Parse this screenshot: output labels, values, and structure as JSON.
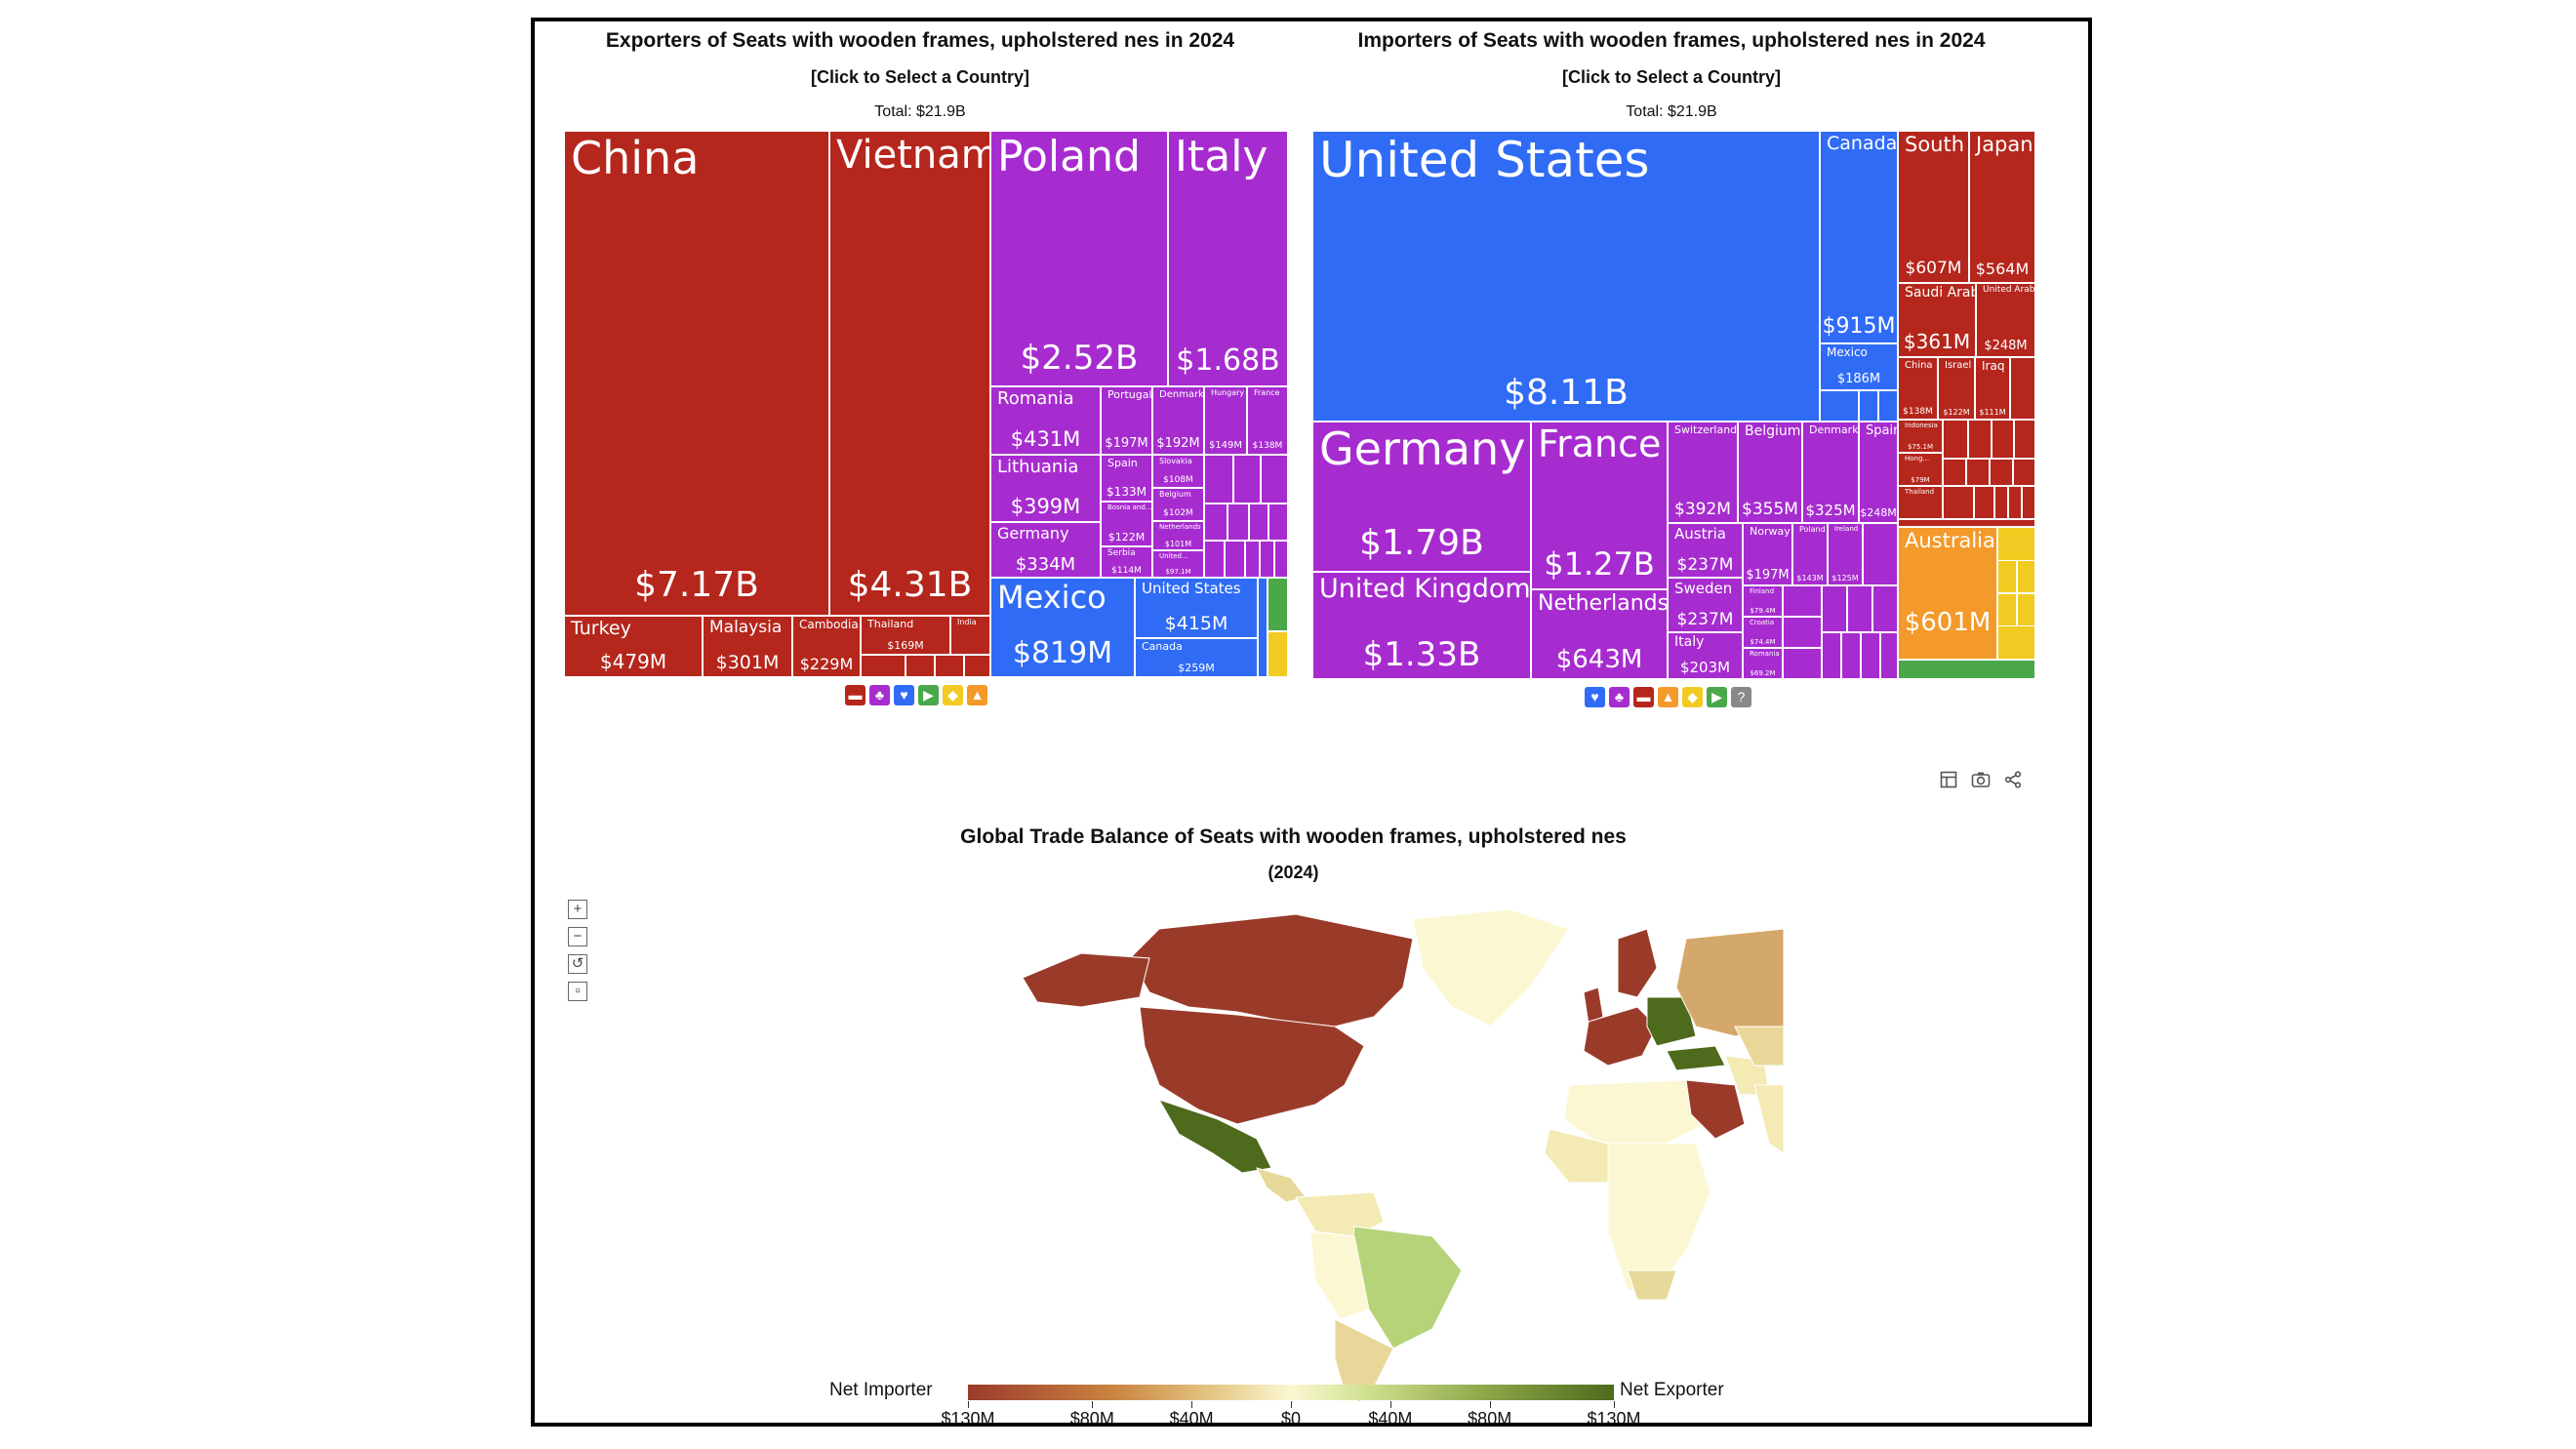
{
  "chart_data": [
    {
      "type": "treemap",
      "title": "Exporters of Seats with wooden frames, upholstered nes in 2024",
      "subtitle": "[Click to Select a Country]",
      "total": "Total: $21.9B",
      "items": [
        {
          "name": "China",
          "value": "$7.17B"
        },
        {
          "name": "Vietnam",
          "value": "$4.31B"
        },
        {
          "name": "Turkey",
          "value": "$479M"
        },
        {
          "name": "Malaysia",
          "value": "$301M"
        },
        {
          "name": "Cambodia",
          "value": "$229M"
        },
        {
          "name": "Thailand",
          "value": "$169M"
        },
        {
          "name": "India",
          "value": ""
        },
        {
          "name": "Poland",
          "value": "$2.52B"
        },
        {
          "name": "Italy",
          "value": "$1.68B"
        },
        {
          "name": "Romania",
          "value": "$431M"
        },
        {
          "name": "Lithuania",
          "value": "$399M"
        },
        {
          "name": "Germany",
          "value": "$334M"
        },
        {
          "name": "Portugal",
          "value": "$197M"
        },
        {
          "name": "Denmark",
          "value": "$192M"
        },
        {
          "name": "Hungary",
          "value": "$149M"
        },
        {
          "name": "France",
          "value": "$138M"
        },
        {
          "name": "Spain",
          "value": "$133M"
        },
        {
          "name": "Slovakia",
          "value": "$108M"
        },
        {
          "name": "Belgium",
          "value": "$102M"
        },
        {
          "name": "Bosnia and...",
          "value": "$122M"
        },
        {
          "name": "Netherlands",
          "value": "$101M"
        },
        {
          "name": "Serbia",
          "value": "$114M"
        },
        {
          "name": "United...",
          "value": "$97.1M"
        },
        {
          "name": "Mexico",
          "value": "$819M"
        },
        {
          "name": "United States",
          "value": "$415M"
        },
        {
          "name": "Canada",
          "value": "$259M"
        }
      ]
    },
    {
      "type": "treemap",
      "title": "Importers of Seats with wooden frames, upholstered nes in 2024",
      "subtitle": "[Click to Select a Country]",
      "total": "Total: $21.9B",
      "items": [
        {
          "name": "United States",
          "value": "$8.11B"
        },
        {
          "name": "Canada",
          "value": "$915M"
        },
        {
          "name": "Mexico",
          "value": "$186M"
        },
        {
          "name": "Germany",
          "value": "$1.79B"
        },
        {
          "name": "France",
          "value": "$1.27B"
        },
        {
          "name": "United Kingdom",
          "value": "$1.33B"
        },
        {
          "name": "Netherlands",
          "value": "$643M"
        },
        {
          "name": "Switzerland",
          "value": "$392M"
        },
        {
          "name": "Belgium",
          "value": "$355M"
        },
        {
          "name": "Denmark",
          "value": "$325M"
        },
        {
          "name": "Spain",
          "value": "$248M"
        },
        {
          "name": "Austria",
          "value": "$237M"
        },
        {
          "name": "Sweden",
          "value": "$237M"
        },
        {
          "name": "Italy",
          "value": "$203M"
        },
        {
          "name": "Norway",
          "value": "$197M"
        },
        {
          "name": "Poland",
          "value": "$143M"
        },
        {
          "name": "Ireland",
          "value": "$125M"
        },
        {
          "name": "Finland",
          "value": "$79.4M"
        },
        {
          "name": "Croatia",
          "value": "$74.4M"
        },
        {
          "name": "Romania",
          "value": "$69.2M"
        },
        {
          "name": "South Korea",
          "value": "$607M"
        },
        {
          "name": "Japan",
          "value": "$564M"
        },
        {
          "name": "Saudi Arabia",
          "value": "$361M"
        },
        {
          "name": "United Arab Emirates",
          "value": "$248M"
        },
        {
          "name": "China",
          "value": "$138M"
        },
        {
          "name": "Israel",
          "value": "$122M"
        },
        {
          "name": "Iraq",
          "value": "$111M"
        },
        {
          "name": "Indonesia",
          "value": "$75.1M"
        },
        {
          "name": "Hong...",
          "value": "$79M"
        },
        {
          "name": "Thailand",
          "value": ""
        },
        {
          "name": "Australia",
          "value": "$601M"
        }
      ]
    },
    {
      "type": "choropleth",
      "title": "Global Trade Balance of Seats with wooden frames, upholstered nes",
      "subtitle": "(2024)",
      "legend_left": "Net Importer",
      "legend_right": "Net Exporter",
      "scale_ticks": [
        "$130M",
        "$80M",
        "$40M",
        "$0",
        "$40M",
        "$80M",
        "$130M"
      ],
      "scale_values": [
        -130,
        -80,
        -40,
        0,
        40,
        80,
        130
      ],
      "colors": {
        "import_strong": "#9a3b2a",
        "import_mid": "#d4a86a",
        "neutral": "#fbf7d2",
        "export_mid": "#b7d37a",
        "export_strong": "#4e6a1c"
      }
    }
  ],
  "toolbar": {
    "table_icon": "table-icon",
    "camera_icon": "camera-icon",
    "share_icon": "share-icon"
  },
  "zoom": {
    "in": "+",
    "out": "−",
    "reset": "↺",
    "fit": "▫"
  },
  "legend_exporters": [
    "asia",
    "europe",
    "north-america",
    "south-america",
    "africa",
    "oceania"
  ],
  "legend_importers": [
    "north-america",
    "europe",
    "asia",
    "oceania",
    "africa",
    "south-america",
    "unknown"
  ]
}
